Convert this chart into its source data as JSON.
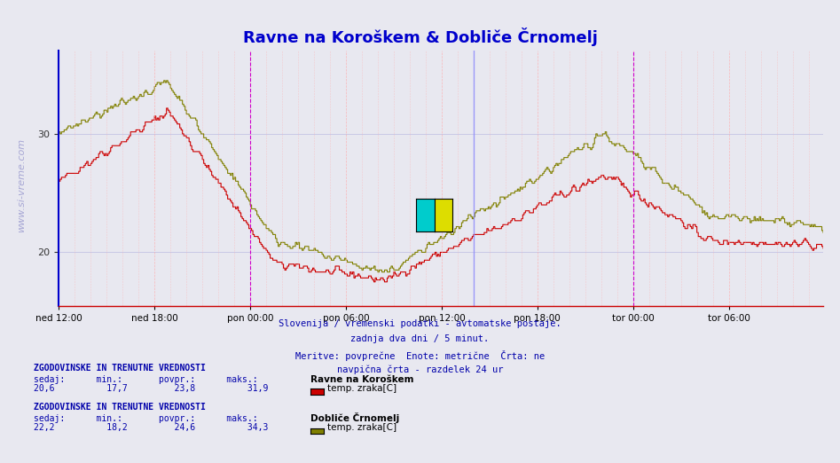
{
  "title": "Ravne na Koroškem & Dobliče Črnomelj",
  "title_color": "#0000cc",
  "title_fontsize": 13,
  "bg_color": "#e8e8f0",
  "plot_bg_color": "#e8e8f0",
  "line1_color": "#cc0000",
  "line2_color": "#808000",
  "ylim": [
    15.5,
    37
  ],
  "yticks": [
    20,
    30
  ],
  "ylabel_fontsize": 9,
  "xlabel_fontsize": 8,
  "xtick_labels": [
    "ned 12:00",
    "ned 18:00",
    "pon 00:00",
    "pon 06:00",
    "pon 12:00",
    "pon 18:00",
    "tor 00:00",
    "tor 06:00"
  ],
  "grid_color_major": "#aaaadd",
  "grid_color_minor": "#ffaaaa",
  "vline_color_day": "#cc00cc",
  "vline_color_now": "#8888ff",
  "watermark": "www.si-vreme.com",
  "subtitle_lines": [
    "Slovenija / vremenski podatki - avtomatske postaje.",
    "zadnja dva dni / 5 minut.",
    "Meritve: povprečne  Enote: metrične  Črta: ne",
    "navpična črta - razdelek 24 ur"
  ],
  "station1_name": "Ravne na Koroškem",
  "station1_sedaj": "20,6",
  "station1_min": "17,7",
  "station1_povpr": "23,8",
  "station1_maks": "31,9",
  "station1_legend": "temp. zraka[C]",
  "station1_legend_color": "#cc0000",
  "station2_name": "Dobliče Črnomelj",
  "station2_sedaj": "22,2",
  "station2_min": "18,2",
  "station2_povpr": "24,6",
  "station2_maks": "34,3",
  "station2_legend": "temp. zraka[C]",
  "station2_legend_color": "#808000",
  "n_points": 576
}
